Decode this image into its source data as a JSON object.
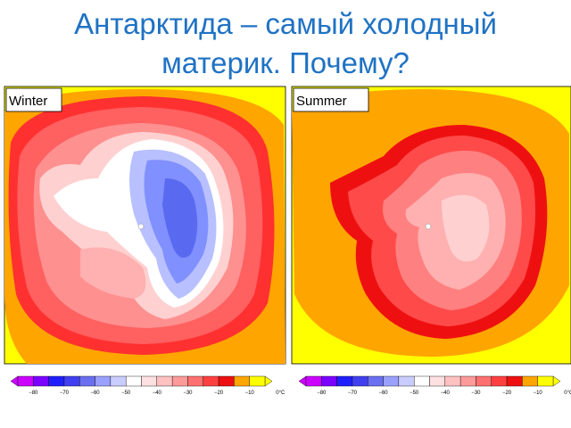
{
  "title_lines": [
    "Антарктида – самый холодный",
    "материк. Почему?"
  ],
  "panels": [
    {
      "label": "Winter"
    },
    {
      "label": "Summer"
    }
  ],
  "colorbar_labels": [
    "−80",
    "−70",
    "−60",
    "−50",
    "−40",
    "−30",
    "−20",
    "−10",
    "0°C"
  ]
}
